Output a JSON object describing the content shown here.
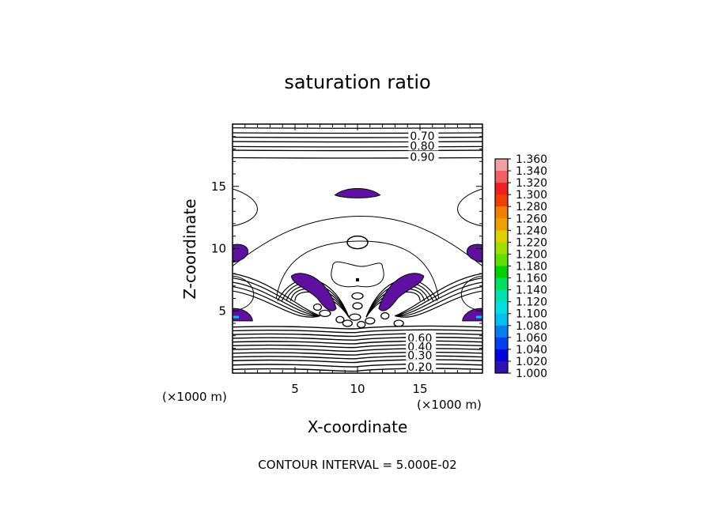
{
  "chart_data": {
    "type": "contour",
    "title": "saturation ratio",
    "xlabel": "X-coordinate",
    "ylabel": "Z-coordinate",
    "x_unit_note": "(×1000 m)",
    "z_unit_note": "(×1000 m)",
    "xlim": [
      0,
      20
    ],
    "ylim": [
      0,
      20
    ],
    "x_ticks": [
      5,
      10,
      15
    ],
    "x_tick_labels": [
      "5",
      "10",
      "15"
    ],
    "y_ticks": [
      5,
      10,
      15
    ],
    "y_tick_labels": [
      "5",
      "10",
      "15"
    ],
    "contour_interval_text": "CONTOUR INTERVAL = 5.000E-02",
    "contour_labels": [
      {
        "text": "0.70",
        "x": 14.2,
        "z": 19.0
      },
      {
        "text": "0.80",
        "x": 14.2,
        "z": 18.2
      },
      {
        "text": "0.90",
        "x": 14.2,
        "z": 17.3
      },
      {
        "text": "0.60",
        "x": 14.0,
        "z": 2.75
      },
      {
        "text": "0.40",
        "x": 14.0,
        "z": 2.05
      },
      {
        "text": "0.30",
        "x": 14.0,
        "z": 1.35
      },
      {
        "text": "0.20",
        "x": 14.0,
        "z": 0.45
      }
    ],
    "colorbar": {
      "levels": [
        "1.360",
        "1.340",
        "1.320",
        "1.300",
        "1.280",
        "1.260",
        "1.240",
        "1.220",
        "1.200",
        "1.180",
        "1.160",
        "1.140",
        "1.120",
        "1.100",
        "1.080",
        "1.060",
        "1.040",
        "1.020",
        "1.000"
      ],
      "colors": [
        "#f0a0a0",
        "#f06060",
        "#f02020",
        "#f04000",
        "#f08000",
        "#f0a000",
        "#e0d000",
        "#a0e000",
        "#60e000",
        "#00d000",
        "#00e060",
        "#00e0b0",
        "#00e0e0",
        "#00c0f0",
        "#0080f0",
        "#0040f0",
        "#0000e0",
        "#3010b0",
        "#6010a0"
      ]
    },
    "supersaturated_color": "#6010a0",
    "grid": false
  }
}
